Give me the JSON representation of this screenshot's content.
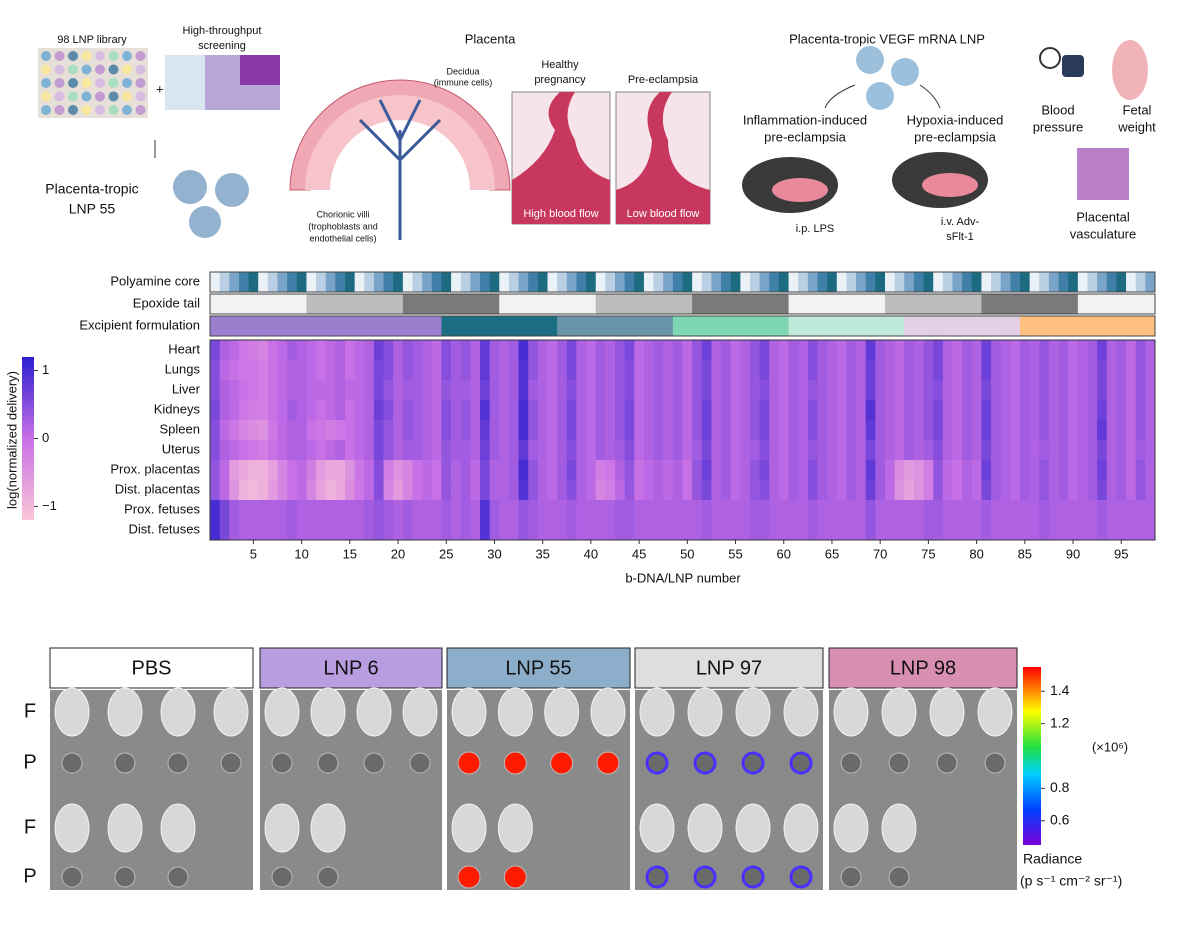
{
  "panel_a": {
    "library": "98 LNP library",
    "screening": [
      "High-throughput",
      "screening"
    ],
    "lnp55": [
      "Placenta-tropic",
      "LNP 55"
    ],
    "placenta": {
      "title": "Placenta",
      "decidua": [
        "Decidua",
        "(immune cells)"
      ],
      "villi": [
        "Chorionic villi",
        "(trophoblasts and",
        "endothelial cells)"
      ],
      "healthy": [
        "Healthy",
        "pregnancy"
      ],
      "preeclampsia": "Pre-eclampsia",
      "high_flow": "High blood flow",
      "low_flow": "Low blood flow"
    },
    "vegf": {
      "title": "Placenta-tropic VEGF mRNA LNP",
      "inflammation": [
        "Inflammation-induced",
        "pre-eclampsia"
      ],
      "hypoxia": [
        "Hypoxia-induced",
        "pre-eclampsia"
      ],
      "lps": "i.p. LPS",
      "adv": [
        "i.v. Adv-",
        "sFlt-1"
      ]
    },
    "readouts": {
      "bp": [
        "Blood",
        "pressure"
      ],
      "fw": [
        "Fetal",
        "weight"
      ],
      "pv": [
        "Placental",
        "vasculature"
      ]
    }
  },
  "heatmap": {
    "tracks": [
      "Polyamine core",
      "Epoxide tail",
      "Excipient formulation"
    ],
    "rows": [
      "Heart",
      "Lungs",
      "Liver",
      "Kidneys",
      "Spleen",
      "Uterus",
      "Prox. placentas",
      "Dist. placentas",
      "Prox. fetuses",
      "Dist. fetuses"
    ],
    "values": [
      [
        0.6,
        0.2,
        0.1,
        -0.1,
        -0.2,
        -0.3,
        0,
        0.1,
        0.3,
        0.2,
        0.1,
        0,
        0.1,
        0.2,
        0,
        0.1,
        0.2,
        0.7,
        0.5,
        0.2,
        0.4,
        0.3,
        0.2,
        0.1,
        0.5,
        0.3,
        0.4,
        0.2,
        0.8,
        0.3,
        0.2,
        0.3,
        1.0,
        0.4,
        0.2,
        0.1,
        0.3,
        0.6,
        0.2,
        0.1,
        0.3,
        0.2,
        0.4,
        0.6,
        0.1,
        0.2,
        0.3,
        0.2,
        0.3,
        0.1,
        0.4,
        0.7,
        0.2,
        0.3,
        0.1,
        0.2,
        0.4,
        0.6,
        0.2,
        0.1,
        0.3,
        0.2,
        0.5,
        0.3,
        0.2,
        0.1,
        0.3,
        0.2,
        0.8,
        0.3,
        0.2,
        0.1,
        0.3,
        0.2,
        0.4,
        0.6,
        0.2,
        0.1,
        0.3,
        0.2,
        0.7,
        0.3,
        0.2,
        0.1,
        0.3,
        0.2,
        0.4,
        0.2,
        0.3,
        0.1,
        0.2,
        0.3,
        0.7,
        0.2,
        0.3,
        0.1,
        0.4,
        0.2
      ],
      [
        0.5,
        0.1,
        0,
        -0.1,
        -0.1,
        -0.2,
        0,
        0.1,
        0.2,
        0.2,
        0.1,
        0,
        0.1,
        0.2,
        0,
        0.1,
        0.2,
        0.6,
        0.5,
        0.2,
        0.4,
        0.3,
        0.2,
        0.1,
        0.5,
        0.3,
        0.4,
        0.2,
        0.8,
        0.3,
        0.2,
        0.3,
        0.9,
        0.4,
        0.2,
        0.1,
        0.3,
        0.6,
        0.2,
        0.1,
        0.3,
        0.2,
        0.4,
        0.5,
        0.1,
        0.2,
        0.3,
        0.2,
        0.3,
        0.1,
        0.4,
        0.6,
        0.2,
        0.3,
        0.1,
        0.2,
        0.4,
        0.6,
        0.2,
        0.1,
        0.3,
        0.2,
        0.5,
        0.3,
        0.2,
        0.1,
        0.3,
        0.2,
        0.7,
        0.3,
        0.2,
        0.1,
        0.3,
        0.2,
        0.4,
        0.6,
        0.2,
        0.1,
        0.3,
        0.2,
        0.7,
        0.3,
        0.2,
        0.1,
        0.3,
        0.2,
        0.4,
        0.2,
        0.3,
        0.1,
        0.2,
        0.3,
        0.6,
        0.2,
        0.3,
        0.1,
        0.4,
        0.2
      ],
      [
        0.5,
        0.2,
        0.1,
        0,
        -0.1,
        -0.2,
        0,
        0.1,
        0.2,
        0.2,
        0.1,
        0.1,
        0.1,
        0.2,
        0.1,
        0.1,
        0.2,
        0.6,
        0.4,
        0.2,
        0.3,
        0.3,
        0.2,
        0.1,
        0.4,
        0.3,
        0.3,
        0.2,
        0.7,
        0.3,
        0.2,
        0.3,
        0.9,
        0.3,
        0.2,
        0.1,
        0.3,
        0.5,
        0.2,
        0.1,
        0.3,
        0.2,
        0.4,
        0.5,
        0.1,
        0.2,
        0.3,
        0.2,
        0.3,
        0.1,
        0.4,
        0.6,
        0.2,
        0.3,
        0.1,
        0.2,
        0.4,
        0.5,
        0.2,
        0.1,
        0.3,
        0.2,
        0.4,
        0.3,
        0.2,
        0.1,
        0.3,
        0.2,
        0.7,
        0.3,
        0.2,
        0.1,
        0.3,
        0.2,
        0.4,
        0.5,
        0.2,
        0.1,
        0.3,
        0.2,
        0.6,
        0.3,
        0.2,
        0.1,
        0.3,
        0.2,
        0.4,
        0.2,
        0.3,
        0.1,
        0.2,
        0.3,
        0.6,
        0.2,
        0.3,
        0.1,
        0.4,
        0.2
      ],
      [
        0.6,
        0.2,
        0.1,
        -0.1,
        -0.2,
        -0.2,
        0,
        0.1,
        0.3,
        0.2,
        0.1,
        0,
        0.1,
        0.2,
        0,
        0.1,
        0.2,
        0.7,
        0.5,
        0.2,
        0.4,
        0.3,
        0.2,
        0.1,
        0.5,
        0.3,
        0.4,
        0.2,
        0.9,
        0.3,
        0.2,
        0.3,
        1.0,
        0.4,
        0.2,
        0.1,
        0.3,
        0.6,
        0.2,
        0.1,
        0.3,
        0.2,
        0.4,
        0.6,
        0.1,
        0.2,
        0.3,
        0.2,
        0.3,
        0.1,
        0.4,
        0.7,
        0.2,
        0.3,
        0.1,
        0.2,
        0.4,
        0.6,
        0.2,
        0.1,
        0.3,
        0.2,
        0.5,
        0.3,
        0.2,
        0.1,
        0.3,
        0.2,
        0.9,
        0.3,
        0.2,
        0.1,
        0.3,
        0.2,
        0.4,
        0.6,
        0.2,
        0.1,
        0.3,
        0.2,
        0.7,
        0.3,
        0.2,
        0.1,
        0.3,
        0.2,
        0.4,
        0.2,
        0.3,
        0.1,
        0.2,
        0.3,
        0.7,
        0.2,
        0.3,
        0.1,
        0.4,
        0.2
      ],
      [
        0.5,
        0.1,
        -0.1,
        -0.3,
        -0.4,
        -0.5,
        -0.1,
        0.1,
        0.2,
        0.2,
        0,
        -0.1,
        -0.2,
        -0.1,
        0,
        0.1,
        0.2,
        0.6,
        0.4,
        0.2,
        0.4,
        0.3,
        0.2,
        0.1,
        0.5,
        0.3,
        0.4,
        0.2,
        0.8,
        0.3,
        0.2,
        0.3,
        1.0,
        0.4,
        0.2,
        0.1,
        0.3,
        0.6,
        0.2,
        0.1,
        0.3,
        0.2,
        0.4,
        0.6,
        0.1,
        0.2,
        0.3,
        0.2,
        0.3,
        0.1,
        0.4,
        0.7,
        0.2,
        0.3,
        0.1,
        0.2,
        0.4,
        0.6,
        0.2,
        0.1,
        0.3,
        0.2,
        0.5,
        0.3,
        0.2,
        0.1,
        0.3,
        0.2,
        0.8,
        0.3,
        0.2,
        0.1,
        0.3,
        0.2,
        0.4,
        0.6,
        0.2,
        0.1,
        0.3,
        0.2,
        0.7,
        0.3,
        0.2,
        0.1,
        0.3,
        0.2,
        0.4,
        0.2,
        0.3,
        0.1,
        0.2,
        0.3,
        0.8,
        0.2,
        0.3,
        0.1,
        0.4,
        0.2
      ],
      [
        0.5,
        0.2,
        0.1,
        0,
        -0.1,
        -0.2,
        0,
        0.1,
        0.2,
        0.2,
        0.1,
        0,
        0.1,
        0.2,
        0,
        0.1,
        0.2,
        0.6,
        0.4,
        0.2,
        0.3,
        0.3,
        0.2,
        0.1,
        0.4,
        0.3,
        0.3,
        0.2,
        0.7,
        0.3,
        0.2,
        0.3,
        0.8,
        0.3,
        0.2,
        0.1,
        0.3,
        0.5,
        0.2,
        0.1,
        0.3,
        0.2,
        0.3,
        0.5,
        0.1,
        0.2,
        0.3,
        0.2,
        0.3,
        0.1,
        0.3,
        0.6,
        0.2,
        0.3,
        0.1,
        0.2,
        0.3,
        0.5,
        0.2,
        0.1,
        0.3,
        0.2,
        0.4,
        0.3,
        0.2,
        0.1,
        0.3,
        0.2,
        0.6,
        0.3,
        0.2,
        0.1,
        0.3,
        0.2,
        0.3,
        0.5,
        0.2,
        0.1,
        0.3,
        0.2,
        0.6,
        0.3,
        0.2,
        0.1,
        0.3,
        0.2,
        0.3,
        0.2,
        0.3,
        0.1,
        0.2,
        0.3,
        0.6,
        0.2,
        0.3,
        0.1,
        0.3,
        0.2
      ],
      [
        0.4,
        0.1,
        -0.6,
        -0.8,
        -0.9,
        -0.9,
        -0.7,
        -0.3,
        0,
        0.1,
        -0.2,
        -0.6,
        -0.8,
        -0.8,
        -0.5,
        -0.1,
        0.1,
        0.5,
        -0.2,
        -0.5,
        -0.3,
        0,
        0.1,
        0,
        0.4,
        0.2,
        0.3,
        0.1,
        0.6,
        0.2,
        0.2,
        0.3,
        1.0,
        0.4,
        0.2,
        0.1,
        0.3,
        0.6,
        0.2,
        0.1,
        -0.2,
        -0.1,
        0.2,
        0.4,
        0,
        0.1,
        0.2,
        0.1,
        0.2,
        0,
        0.4,
        0.7,
        0.2,
        0.3,
        0.1,
        0.2,
        0.4,
        0.6,
        0.2,
        0.1,
        0.3,
        0.2,
        0.5,
        0.3,
        0.2,
        0.1,
        0.3,
        0.2,
        0.8,
        0.3,
        0.1,
        -0.4,
        -0.6,
        -0.5,
        -0.2,
        0.4,
        0.1,
        0,
        0.2,
        0.1,
        0.7,
        0.3,
        0.2,
        0.1,
        0.3,
        0.2,
        0.4,
        0.2,
        0.3,
        0.1,
        0.2,
        0.3,
        0.7,
        0.2,
        0.3,
        0.1,
        0.4,
        0.2
      ],
      [
        0.4,
        0.1,
        -0.5,
        -0.9,
        -1.0,
        -0.9,
        -0.6,
        -0.3,
        0,
        0.1,
        -0.3,
        -0.7,
        -0.9,
        -0.8,
        -0.4,
        -0.1,
        0.1,
        0.5,
        -0.3,
        -0.6,
        -0.3,
        0,
        0.1,
        0,
        0.4,
        0.2,
        0.3,
        0.1,
        0.6,
        0.2,
        0.2,
        0.3,
        0.9,
        0.4,
        0.2,
        0.1,
        0.3,
        0.5,
        0.2,
        0.1,
        -0.3,
        -0.2,
        0.1,
        0.4,
        0,
        0.1,
        0.2,
        0.1,
        0.2,
        0,
        0.4,
        0.6,
        0.2,
        0.3,
        0.1,
        0.2,
        0.4,
        0.5,
        0.2,
        0.1,
        0.3,
        0.2,
        0.5,
        0.3,
        0.2,
        0.1,
        0.3,
        0.2,
        0.7,
        0.3,
        0.1,
        -0.5,
        -0.7,
        -0.5,
        -0.2,
        0.4,
        0.1,
        0,
        0.2,
        0.1,
        0.6,
        0.3,
        0.2,
        0.1,
        0.3,
        0.2,
        0.4,
        0.2,
        0.3,
        0.1,
        0.2,
        0.3,
        0.6,
        0.2,
        0.3,
        0.1,
        0.4,
        0.2
      ],
      [
        1.0,
        0.6,
        0.3,
        0.2,
        0.2,
        0.2,
        0.2,
        0.2,
        0.3,
        0.2,
        0.2,
        0.2,
        0.2,
        0.2,
        0.2,
        0.2,
        0.3,
        0.4,
        0.3,
        0.2,
        0.3,
        0.2,
        0.2,
        0.2,
        0.3,
        0.2,
        0.3,
        0.2,
        0.9,
        0.3,
        0.2,
        0.2,
        0.4,
        0.3,
        0.2,
        0.2,
        0.2,
        0.3,
        0.2,
        0.2,
        0.2,
        0.2,
        0.3,
        0.3,
        0.2,
        0.2,
        0.2,
        0.2,
        0.2,
        0.2,
        0.2,
        0.3,
        0.2,
        0.2,
        0.2,
        0.2,
        0.3,
        0.3,
        0.2,
        0.2,
        0.2,
        0.2,
        0.3,
        0.2,
        0.2,
        0.2,
        0.2,
        0.2,
        0.4,
        0.2,
        0.2,
        0.2,
        0.2,
        0.2,
        0.3,
        0.3,
        0.2,
        0.2,
        0.2,
        0.2,
        0.3,
        0.2,
        0.2,
        0.2,
        0.2,
        0.2,
        0.3,
        0.2,
        0.2,
        0.2,
        0.2,
        0.2,
        0.3,
        0.2,
        0.2,
        0.2,
        0.2,
        0.2
      ],
      [
        1.0,
        0.6,
        0.3,
        0.2,
        0.2,
        0.2,
        0.2,
        0.2,
        0.3,
        0.2,
        0.2,
        0.2,
        0.2,
        0.2,
        0.2,
        0.2,
        0.3,
        0.4,
        0.3,
        0.2,
        0.3,
        0.2,
        0.2,
        0.2,
        0.3,
        0.2,
        0.3,
        0.2,
        0.9,
        0.3,
        0.2,
        0.2,
        0.4,
        0.3,
        0.2,
        0.2,
        0.2,
        0.3,
        0.2,
        0.2,
        0.2,
        0.2,
        0.3,
        0.3,
        0.2,
        0.2,
        0.2,
        0.2,
        0.2,
        0.2,
        0.2,
        0.3,
        0.2,
        0.2,
        0.2,
        0.2,
        0.3,
        0.3,
        0.2,
        0.2,
        0.2,
        0.2,
        0.3,
        0.2,
        0.2,
        0.2,
        0.2,
        0.2,
        0.4,
        0.2,
        0.2,
        0.2,
        0.2,
        0.2,
        0.3,
        0.3,
        0.2,
        0.2,
        0.2,
        0.2,
        0.3,
        0.2,
        0.2,
        0.2,
        0.2,
        0.2,
        0.3,
        0.2,
        0.2,
        0.2,
        0.2,
        0.2,
        0.3,
        0.2,
        0.2,
        0.2,
        0.2,
        0.2
      ]
    ],
    "xlabel": "b-DNA/LNP number",
    "xlim": [
      0.5,
      98.5
    ],
    "xticks": [
      5,
      10,
      15,
      20,
      25,
      30,
      35,
      40,
      45,
      50,
      55,
      60,
      65,
      70,
      75,
      80,
      85,
      90,
      95
    ],
    "colorbar": {
      "label": "log(normalized delivery)",
      "lim": [
        -1.2,
        1.2
      ],
      "ticks": [
        1,
        0,
        {
          "value": -1,
          "label": "−1"
        }
      ]
    }
  },
  "imaging": {
    "groups": [
      "PBS",
      "LNP 6",
      "LNP 55",
      "LNP 97",
      "LNP 98"
    ],
    "rows": [
      "F",
      "P",
      "F",
      "P"
    ],
    "colorbar": {
      "title": "Radiance",
      "unit": "(p s⁻¹ cm⁻² sr⁻¹)",
      "multiplier": "(×10⁶)",
      "lim": [
        0.45,
        1.55
      ],
      "ticks": [
        1.4,
        1.2,
        0.8,
        0.6
      ]
    }
  }
}
